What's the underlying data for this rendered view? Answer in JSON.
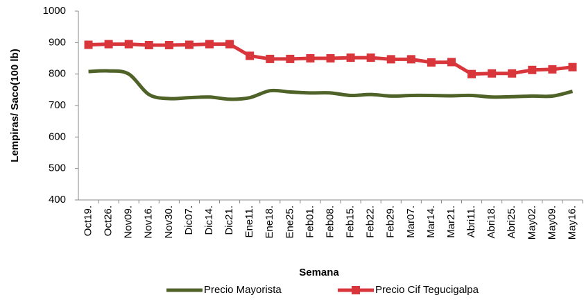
{
  "chart_data": {
    "type": "line",
    "y_label": "Lempiras/ Saco(100 lb)",
    "x_label": "Semana",
    "categories": [
      "Oct19.",
      "Oct26.",
      "Nov09.",
      "Nov16.",
      "Nov30.",
      "Dic07.",
      "Dic14.",
      "Dic21.",
      "Ene11.",
      "Ene18.",
      "Ene25.",
      "Feb01.",
      "Feb08.",
      "Feb15.",
      "Feb22.",
      "Feb29.",
      "Mar07.",
      "Mar14.",
      "Mar21.",
      "Abri11.",
      "Abri18.",
      "Abri25.",
      "May02.",
      "May09.",
      "May16."
    ],
    "series": [
      {
        "name": "Precio Mayorista",
        "color": "#4f6228",
        "smooth": true,
        "marker": "none",
        "values": [
          808,
          810,
          800,
          735,
          722,
          725,
          727,
          720,
          725,
          747,
          743,
          740,
          740,
          732,
          735,
          730,
          732,
          732,
          731,
          732,
          727,
          728,
          730,
          730,
          745
        ]
      },
      {
        "name": "Precio Cif Tegucigalpa",
        "color": "#d9363c",
        "smooth": false,
        "marker": "square",
        "values": [
          893,
          895,
          895,
          892,
          892,
          893,
          895,
          895,
          858,
          848,
          848,
          850,
          850,
          852,
          852,
          847,
          847,
          837,
          838,
          800,
          802,
          802,
          813,
          815,
          822
        ]
      }
    ],
    "ylim": [
      400,
      1000
    ],
    "yticks": [
      400,
      500,
      600,
      700,
      800,
      900,
      1000
    ],
    "grid": false,
    "legend": "bottom"
  }
}
